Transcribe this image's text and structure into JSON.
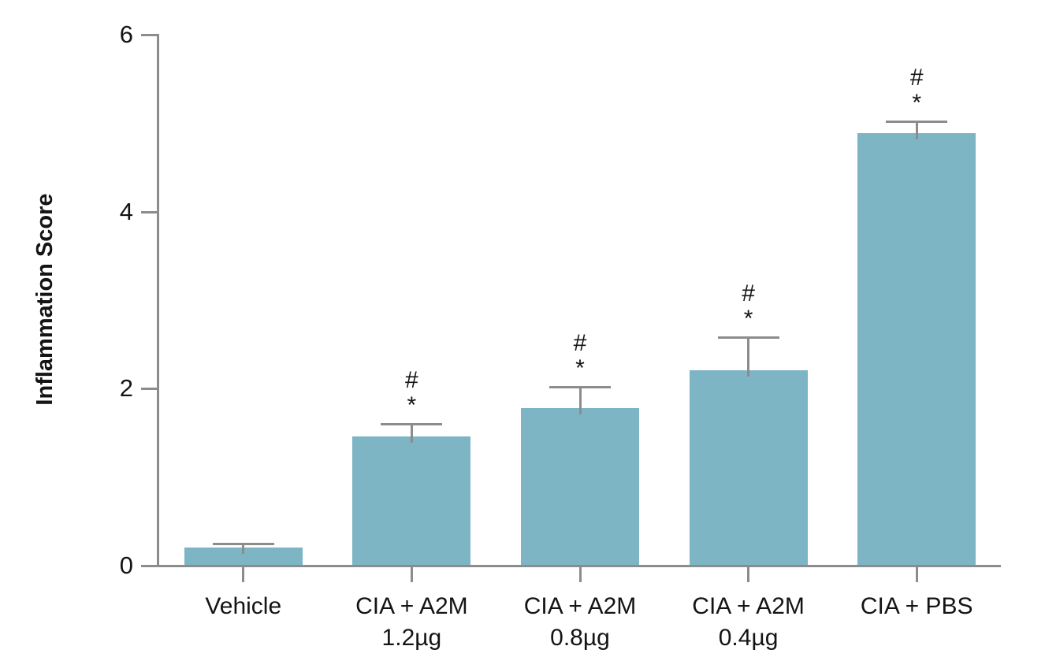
{
  "chart_data": {
    "type": "bar",
    "title": "",
    "xlabel": "",
    "ylabel": "Inflammation Score",
    "ylim": [
      0,
      6
    ],
    "yticks": [
      0,
      2,
      4,
      6
    ],
    "grid": false,
    "legend": false,
    "categories": [
      "Vehicle",
      "CIA + A2M\n1.2µg",
      "CIA + A2M\n0.8µg",
      "CIA + A2M\n0.4µg",
      "CIA + PBS"
    ],
    "values": [
      0.2,
      1.45,
      1.77,
      2.2,
      4.88
    ],
    "error_plus": [
      0.05,
      0.15,
      0.25,
      0.38,
      0.14
    ],
    "significance_markers": [
      "",
      "#\n*",
      "#\n*",
      "#\n*",
      "#\n*"
    ],
    "colors": {
      "bar": "#7db5c5",
      "axis": "#8c8c8c",
      "error_bar": "#8c8c8c",
      "text": "#141414",
      "background": "#ffffff"
    }
  }
}
